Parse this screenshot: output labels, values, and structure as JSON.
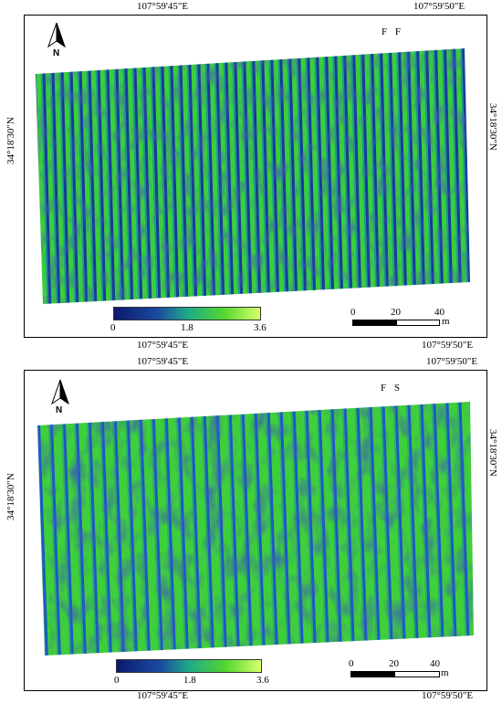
{
  "panels": [
    {
      "title": "F F",
      "top_lon_left": "107°59'45\"E",
      "top_lon_right": "107°59'50\"E",
      "bottom_lon_left": "107°59'45\"E",
      "bottom_lon_right": "107°59'50\"E",
      "left_lat": "34°18'30\"N",
      "right_lat": "34°18'30\"N",
      "north_label": "N",
      "legend": {
        "min": "0",
        "mid": "1.8",
        "max": "3.6"
      },
      "scale": {
        "t0": "0",
        "t1": "20",
        "t2": "40",
        "unit": "m"
      }
    },
    {
      "title": "F S",
      "top_lon_left": "107°59'45\"E",
      "top_lon_right": "107°59'50\"E",
      "bottom_lon_left": "107°59'45\"E",
      "bottom_lon_right": "107°59'50\"E",
      "left_lat": "34°18'30\"N",
      "right_lat": "34°18'30\"N",
      "north_label": "N",
      "legend": {
        "min": "0",
        "mid": "1.8",
        "max": "3.6"
      },
      "scale": {
        "t0": "0",
        "t1": "20",
        "t2": "40",
        "unit": "m"
      }
    }
  ],
  "colors": {
    "low": "#0b1a6e",
    "mid": "#1ea98a",
    "high": "#52d630",
    "max": "#d9ff6a"
  }
}
